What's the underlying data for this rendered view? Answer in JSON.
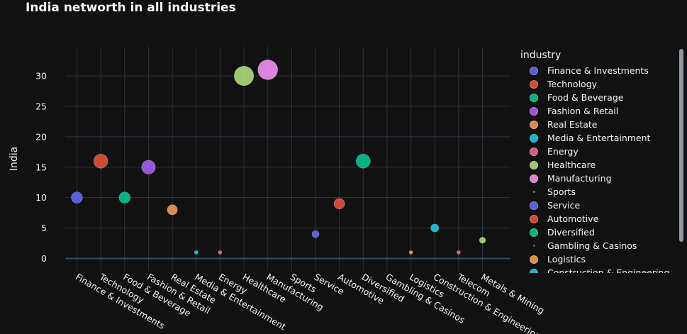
{
  "chart_data": {
    "type": "scatter",
    "title": "India networth in all industries",
    "xlabel": "",
    "ylabel": "India",
    "ylim": [
      -1.5,
      35
    ],
    "yticks": [
      0,
      5,
      10,
      15,
      20,
      25,
      30
    ],
    "grid": true,
    "legend_title": "industry",
    "legend_position": "right",
    "categories": [
      "Finance & Investments",
      "Technology",
      "Food & Beverage",
      "Fashion & Retail",
      "Real Estate",
      "Media & Entertainment",
      "Energy",
      "Healthcare",
      "Manufacturing",
      "Sports",
      "Service",
      "Automotive",
      "Diversified",
      "Gambling & Casinos",
      "Logistics",
      "Construction & Engineering",
      "Telecom",
      "Metals & Mining"
    ],
    "series": [
      {
        "name": "Finance & Investments",
        "x": "Finance & Investments",
        "y": 10,
        "color": "#636efa"
      },
      {
        "name": "Technology",
        "x": "Technology",
        "y": 16,
        "color": "#EF553B"
      },
      {
        "name": "Food & Beverage",
        "x": "Food & Beverage",
        "y": 10,
        "color": "#00cc96"
      },
      {
        "name": "Fashion & Retail",
        "x": "Fashion & Retail",
        "y": 15,
        "color": "#ab63fa"
      },
      {
        "name": "Real Estate",
        "x": "Real Estate",
        "y": 8,
        "color": "#FFA15A"
      },
      {
        "name": "Media & Entertainment",
        "x": "Media & Entertainment",
        "y": 1,
        "color": "#19d3f3"
      },
      {
        "name": "Energy",
        "x": "Energy",
        "y": 1,
        "color": "#FF6692"
      },
      {
        "name": "Healthcare",
        "x": "Healthcare",
        "y": 30,
        "color": "#B6E880"
      },
      {
        "name": "Manufacturing",
        "x": "Manufacturing",
        "y": 31,
        "color": "#FF97FF"
      },
      {
        "name": "Sports",
        "x": "Sports",
        "y": 0,
        "color": "#FECB52"
      },
      {
        "name": "Service",
        "x": "Service",
        "y": 4,
        "color": "#636efa"
      },
      {
        "name": "Automotive",
        "x": "Automotive",
        "y": 9,
        "color": "#EF553B"
      },
      {
        "name": "Diversified",
        "x": "Diversified",
        "y": 16,
        "color": "#00cc96"
      },
      {
        "name": "Gambling & Casinos",
        "x": "Gambling & Casinos",
        "y": 0,
        "color": "#ab63fa"
      },
      {
        "name": "Logistics",
        "x": "Logistics",
        "y": 1,
        "color": "#FFA15A"
      },
      {
        "name": "Construction & Engineering",
        "x": "Construction & Engineering",
        "y": 5,
        "color": "#19d3f3"
      },
      {
        "name": "Telecom",
        "x": "Telecom",
        "y": 1,
        "color": "#FF6692"
      },
      {
        "name": "Metals & Mining",
        "x": "Metals & Mining",
        "y": 3,
        "color": "#B6E880"
      }
    ]
  }
}
